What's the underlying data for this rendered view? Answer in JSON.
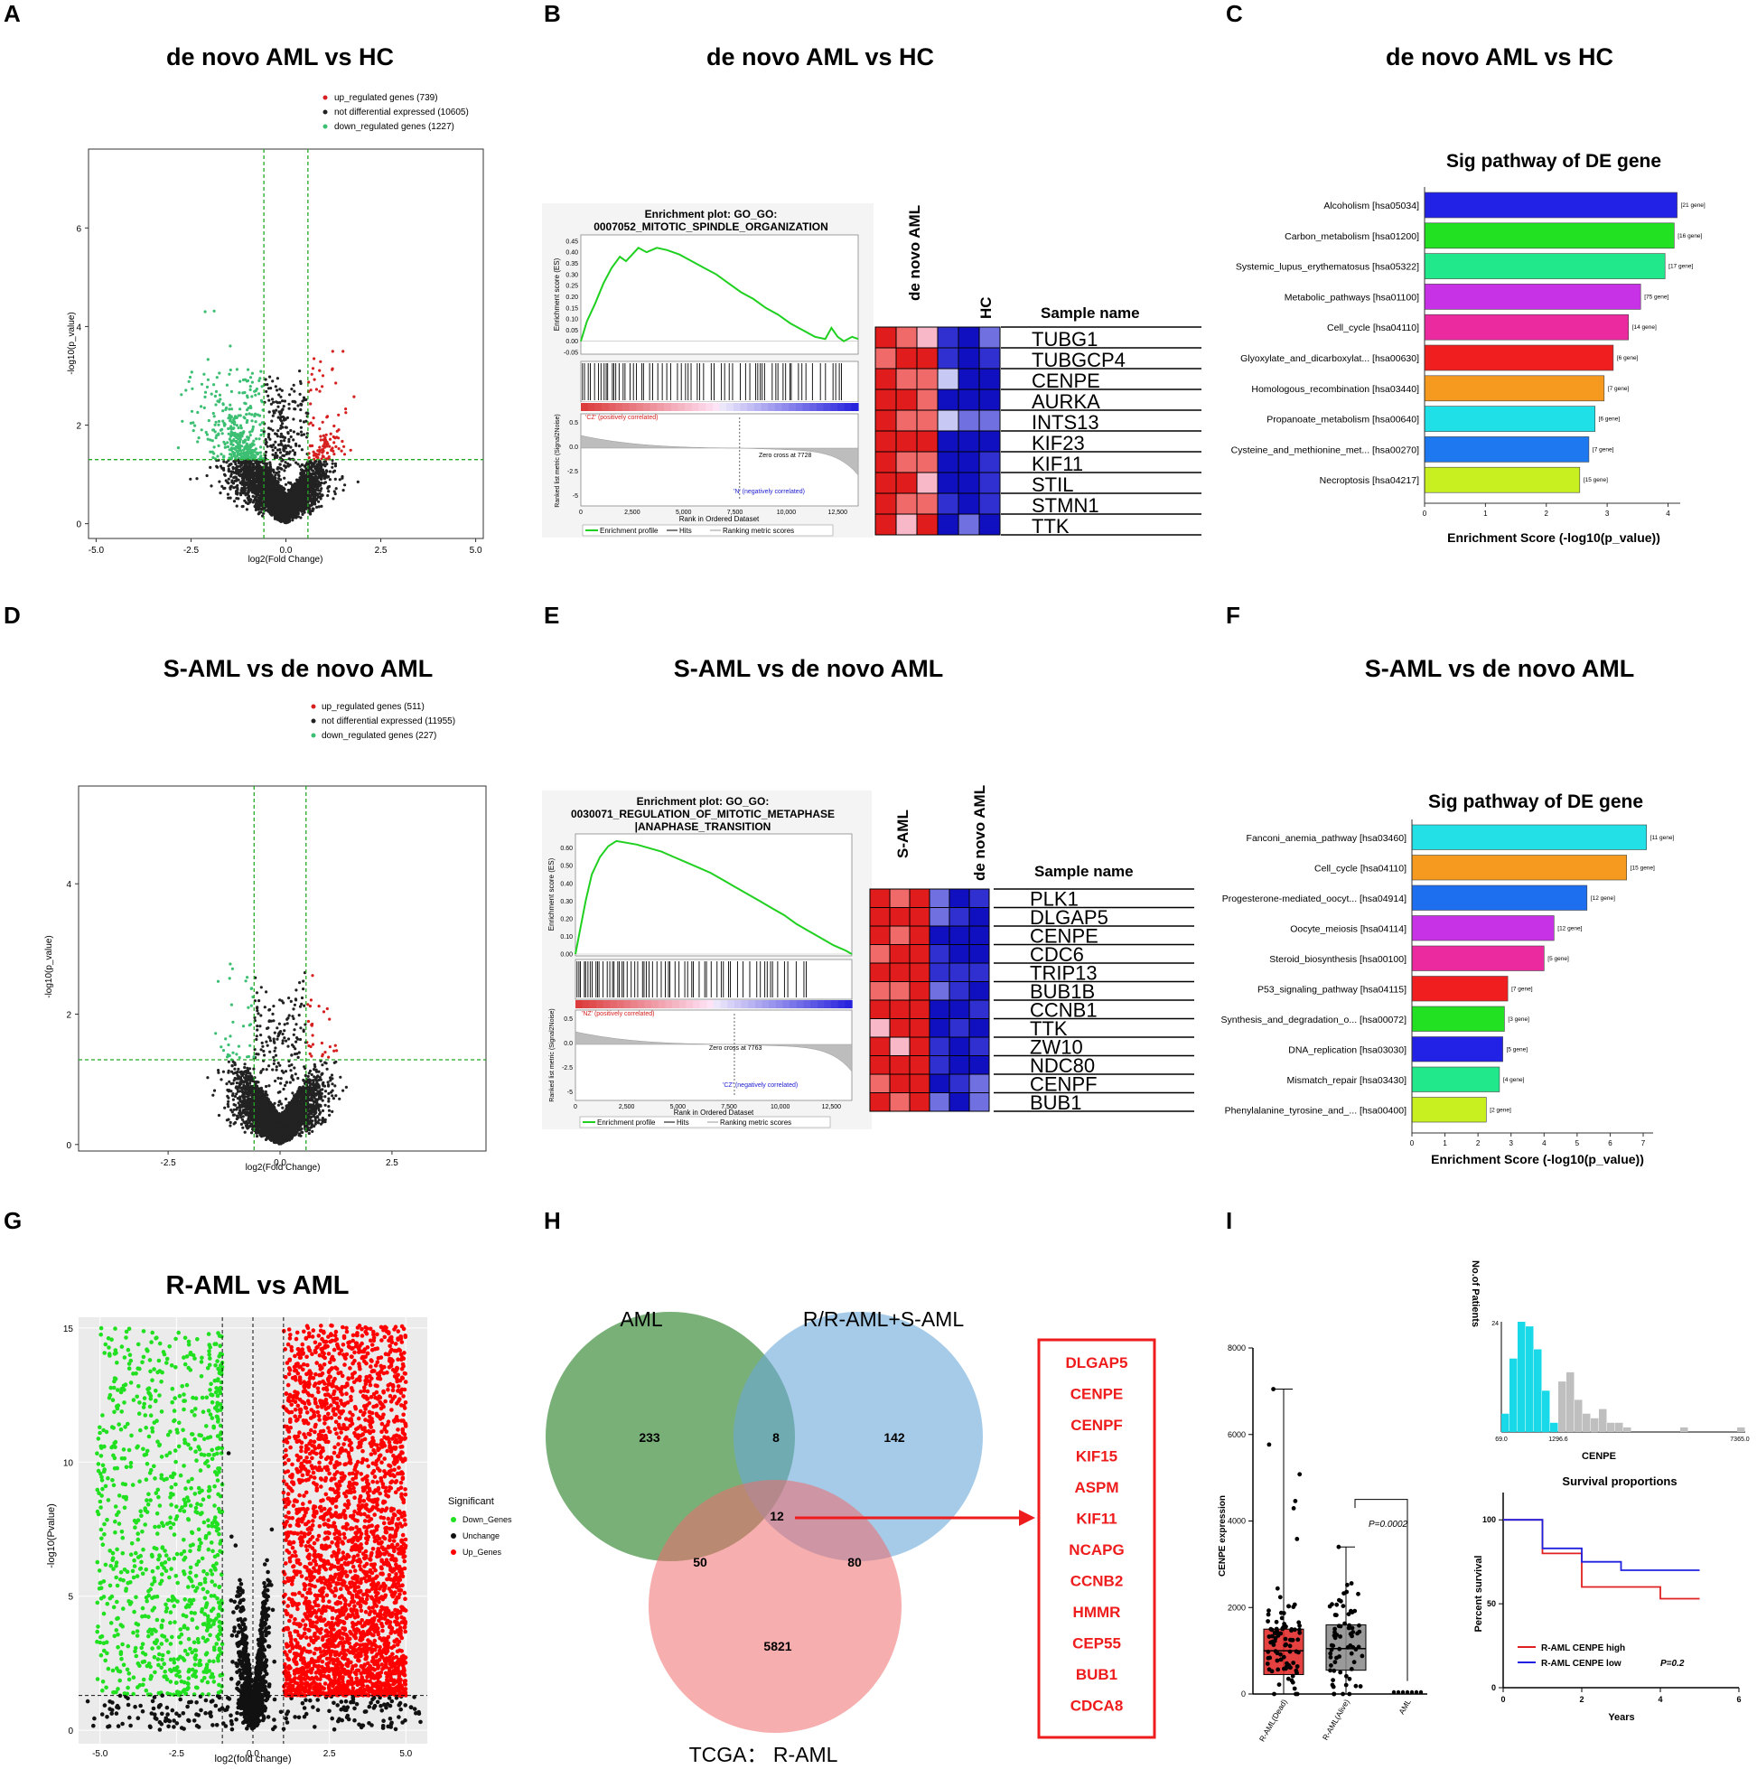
{
  "panel_letters": [
    "A",
    "B",
    "C",
    "D",
    "E",
    "F",
    "G",
    "H",
    "I"
  ],
  "colors": {
    "up": "#d62020",
    "down": "#3cbf72",
    "nd": "#222222",
    "gsea_line": "#20d020",
    "heat_red": "#e02020",
    "heat_blue": "#1010c0",
    "venn_green": "#3f8f3f",
    "venn_blue": "#6aa8d8",
    "venn_red": "#ef6b6b",
    "bright_green": "#20e020",
    "bright_red": "#ff0000",
    "cyan": "#19d8e8"
  },
  "panelA": {
    "title": "de novo AML vs HC",
    "legend": [
      "up_regulated genes (739)",
      "not differential expressed (10605)",
      "down_regulated genes (1227)"
    ],
    "xlabel": "log2(Fold Change)",
    "ylabel": "-log10(p_value)"
  },
  "panelB": {
    "title": "de novo AML vs HC",
    "enrichment_title_1": "Enrichment plot: GO_GO:",
    "enrichment_title_2": "0007052_MITOTIC_SPINDLE_ORGANIZATION",
    "es_label": "Enrichment score (ES)",
    "rank_label": "Ranked list metric (Signal2Noise)",
    "pos_corr": "'CZ' (positively correlated)",
    "neg_corr": "'N' (negatively correlated)",
    "zero_cross": "Zero cross at 7728",
    "xlabel": "Rank in Ordered Dataset",
    "legend": [
      "Enrichment profile",
      "Hits",
      "Ranking metric scores"
    ],
    "group1": "de novo AML",
    "group2": "HC",
    "sample_name": "Sample name",
    "genes": [
      "TUBG1",
      "TUBGCP4",
      "CENPE",
      "AURKA",
      "INTS13",
      "KIF23",
      "KIF11",
      "STIL",
      "STMN1",
      "TTK"
    ]
  },
  "panelC": {
    "title": "de novo AML vs HC",
    "subtitle": "Sig pathway of DE gene",
    "xlabel": "Enrichment Score (-log10(p_value))"
  },
  "panelD": {
    "title": "S-AML vs de novo AML",
    "legend": [
      "up_regulated genes (511)",
      "not differential expressed (11955)",
      "down_regulated genes (227)"
    ],
    "xlabel": "log2(Fold Change)",
    "ylabel": "-log10(p_value)"
  },
  "panelE": {
    "title": "S-AML vs de novo AML",
    "enrichment_title_1": "Enrichment plot: GO_GO:",
    "enrichment_title_2": "0030071_REGULATION_OF_MITOTIC_METAPHASE",
    "enrichment_title_3": "|ANAPHASE_TRANSITION",
    "es_label": "Enrichment score (ES)",
    "rank_label": "Ranked list metric (Signal2Noise)",
    "pos_corr": "'NZ' (positively correlated)",
    "neg_corr": "'CZ' (negatively correlated)",
    "zero_cross": "Zero cross at 7763",
    "xlabel": "Rank in Ordered Dataset",
    "legend": [
      "Enrichment profile",
      "Hits",
      "Ranking metric scores"
    ],
    "group1": "S-AML",
    "group2": "de novo AML",
    "sample_name": "Sample name",
    "genes": [
      "PLK1",
      "DLGAP5",
      "CENPE",
      "CDC6",
      "TRIP13",
      "BUB1B",
      "CCNB1",
      "TTK",
      "ZW10",
      "NDC80",
      "CENPF",
      "BUB1"
    ]
  },
  "panelF": {
    "title": "S-AML vs de novo AML",
    "subtitle": "Sig pathway of DE gene",
    "xlabel": "Enrichment Score (-log10(p_value))"
  },
  "panelG": {
    "title": "R-AML vs  AML",
    "xlabel": "log2(fold change)",
    "ylabel": "-log10(Pvalue)",
    "legend_title": "Significant",
    "legend": [
      "Down_Genes",
      "Unchange",
      "Up_Genes"
    ]
  },
  "panelH": {
    "labels": {
      "aml": "AML",
      "rr": "R/R-AML+S-AML",
      "tcga": "TCGA： R-AML"
    },
    "counts": {
      "aml_only": "233",
      "aml_rr": "8",
      "rr_only": "142",
      "all": "12",
      "aml_tcga": "50",
      "rr_tcga": "80",
      "tcga_only": "5821"
    },
    "genes": [
      "DLGAP5",
      "CENPE",
      "CENPF",
      "KIF15",
      "ASPM",
      "KIF11",
      "NCAPG",
      "CCNB2",
      "HMMR",
      "CEP55",
      "BUB1",
      "CDCA8"
    ]
  },
  "panelI": {
    "box_ylabel": "CENPE expression",
    "p_value": "P=0.0002",
    "hist_ylabel": "No.of Patients",
    "hist_xlabel": "CENPE",
    "hist_ticks": [
      "69.0",
      "1296.6",
      "7365.0"
    ],
    "hist_ytick": "24",
    "surv_title": "Survival proportions",
    "surv_ylabel": "Percent survival",
    "surv_xlabel": "Years",
    "surv_legend": [
      "R-AML CENPE high",
      "R-AML CENPE low"
    ],
    "surv_p": "P=0.2"
  },
  "chart_data": [
    {
      "id": "A",
      "type": "scatter",
      "title": "de novo AML vs HC",
      "xlabel": "log2(Fold Change)",
      "ylabel": "-log10(p_value)",
      "xlim": [
        -5.2,
        5.2
      ],
      "ylim": [
        -0.3,
        7.6
      ],
      "xticks": [
        -5.0,
        -2.5,
        0.0,
        2.5,
        5.0
      ],
      "yticks": [
        0,
        2,
        4,
        6
      ],
      "fc_threshold": 0.58,
      "p_threshold": 1.3,
      "series": [
        {
          "name": "up_regulated genes",
          "count": 739
        },
        {
          "name": "not differential expressed",
          "count": 10605
        },
        {
          "name": "down_regulated genes",
          "count": 1227
        }
      ]
    },
    {
      "id": "B",
      "type": "line",
      "title": "Enrichment plot: GO_GO:0007052_MITOTIC_SPINDLE_ORGANIZATION",
      "xlabel": "Rank in Ordered Dataset",
      "ylabel": "Enrichment score (ES)",
      "xlim": [
        0,
        13500
      ],
      "ylim": [
        -0.05,
        0.47
      ],
      "xticks": [
        0,
        2500,
        5000,
        7500,
        10000,
        12500
      ],
      "yticks": [
        -0.05,
        0.0,
        0.05,
        0.1,
        0.15,
        0.2,
        0.25,
        0.3,
        0.35,
        0.4,
        0.45
      ],
      "x": [
        0,
        300,
        700,
        1100,
        1500,
        1900,
        2200,
        2500,
        2800,
        3200,
        3700,
        4200,
        4800,
        5400,
        6000,
        6600,
        7200,
        7800,
        8400,
        9000,
        9600,
        10200,
        10800,
        11400,
        11900,
        12200,
        12500,
        12800,
        13200,
        13500
      ],
      "values": [
        0.0,
        0.09,
        0.17,
        0.26,
        0.33,
        0.38,
        0.36,
        0.39,
        0.42,
        0.4,
        0.42,
        0.41,
        0.39,
        0.36,
        0.33,
        0.3,
        0.26,
        0.22,
        0.19,
        0.15,
        0.12,
        0.08,
        0.05,
        0.02,
        0.01,
        0.06,
        0.02,
        0.0,
        0.02,
        0.01
      ],
      "zero_cross": 7728
    },
    {
      "id": "C",
      "type": "bar",
      "title": "Sig pathway of DE gene",
      "xlabel": "Enrichment Score (-log10(p_value))",
      "xlim": [
        0,
        4.2
      ],
      "xticks": [
        0,
        1,
        2,
        3,
        4
      ],
      "categories": [
        "Alcoholism [hsa05034]",
        "Carbon_metabolism [hsa01200]",
        "Systemic_lupus_erythematosus [hsa05322]",
        "Metabolic_pathways [hsa01100]",
        "Cell_cycle [hsa04110]",
        "Glyoxylate_and_dicarboxylat... [hsa00630]",
        "Homologous_recombination [hsa03440]",
        "Propanoate_metabolism [hsa00640]",
        "Cysteine_and_methionine_met... [hsa00270]",
        "Necroptosis [hsa04217]"
      ],
      "values": [
        4.15,
        4.1,
        3.95,
        3.55,
        3.35,
        3.1,
        2.95,
        2.8,
        2.7,
        2.55
      ],
      "bar_labels": [
        "[21 gene]",
        "[16 gene]",
        "[17 gene]",
        "[75 gene]",
        "[14 gene]",
        "[6 gene]",
        "[7 gene]",
        "[6 gene]",
        "[7 gene]",
        "[15 gene]"
      ],
      "bar_colors": [
        "#2222e6",
        "#22e022",
        "#22e88c",
        "#c832e6",
        "#ea2a9e",
        "#f01e1e",
        "#f59a1e",
        "#1ee0e6",
        "#1e78f0",
        "#c8f020"
      ]
    },
    {
      "id": "D",
      "type": "scatter",
      "title": "S-AML vs de novo AML",
      "xlabel": "log2(Fold Change)",
      "ylabel": "-log10(p_value)",
      "xlim": [
        -4.5,
        4.6
      ],
      "ylim": [
        -0.1,
        5.5
      ],
      "xticks": [
        -2.5,
        0.0,
        2.5
      ],
      "yticks": [
        0,
        2,
        4
      ],
      "fc_threshold": 0.58,
      "p_threshold": 1.3,
      "series": [
        {
          "name": "up_regulated genes",
          "count": 511
        },
        {
          "name": "not differential expressed",
          "count": 11955
        },
        {
          "name": "down_regulated genes",
          "count": 227
        }
      ]
    },
    {
      "id": "E",
      "type": "line",
      "title": "Enrichment plot: GO_GO:0030071_REGULATION_OF_MITOTIC_METAPHASE|ANAPHASE_TRANSITION",
      "xlabel": "Rank in Ordered Dataset",
      "ylabel": "Enrichment score (ES)",
      "xlim": [
        0,
        13500
      ],
      "ylim": [
        0.0,
        0.67
      ],
      "xticks": [
        0,
        2500,
        5000,
        7500,
        10000,
        12500
      ],
      "yticks": [
        0.0,
        0.1,
        0.2,
        0.3,
        0.4,
        0.5,
        0.6
      ],
      "x": [
        0,
        200,
        500,
        800,
        1200,
        1600,
        2000,
        2500,
        3000,
        3600,
        4200,
        4800,
        5400,
        6000,
        6600,
        7200,
        7800,
        8400,
        9000,
        9600,
        10200,
        10800,
        11400,
        12000,
        12600,
        13200,
        13500
      ],
      "values": [
        0.0,
        0.12,
        0.3,
        0.45,
        0.55,
        0.61,
        0.64,
        0.63,
        0.62,
        0.6,
        0.58,
        0.55,
        0.52,
        0.49,
        0.46,
        0.42,
        0.38,
        0.34,
        0.3,
        0.26,
        0.22,
        0.17,
        0.13,
        0.09,
        0.05,
        0.02,
        0.0
      ],
      "zero_cross": 7763
    },
    {
      "id": "F",
      "type": "bar",
      "title": "Sig pathway of DE gene",
      "xlabel": "Enrichment Score (-log10(p_value))",
      "xlim": [
        0,
        7.3
      ],
      "xticks": [
        0,
        1,
        2,
        3,
        4,
        5,
        6,
        7
      ],
      "categories": [
        "Fanconi_anemia_pathway [hsa03460]",
        "Cell_cycle [hsa04110]",
        "Progesterone-mediated_oocyt... [hsa04914]",
        "Oocyte_meiosis [hsa04114]",
        "Steroid_biosynthesis [hsa00100]",
        "P53_signaling_pathway [hsa04115]",
        "Synthesis_and_degradation_o... [hsa00072]",
        "DNA_replication [hsa03030]",
        "Mismatch_repair [hsa03430]",
        "Phenylalanine_tyrosine_and_... [hsa00400]"
      ],
      "values": [
        7.1,
        6.5,
        5.3,
        4.3,
        4.0,
        2.9,
        2.8,
        2.75,
        2.65,
        2.25
      ],
      "bar_labels": [
        "[11 gene]",
        "[15 gene]",
        "[12 gene]",
        "[12 gene]",
        "[5 gene]",
        "[7 gene]",
        "[3 gene]",
        "[5 gene]",
        "[4 gene]",
        "[2 gene]"
      ],
      "bar_colors": [
        "#22e0e6",
        "#f59a1e",
        "#1e6ef0",
        "#c832e6",
        "#ea2a9e",
        "#f01e1e",
        "#22e022",
        "#2222e6",
        "#22e88c",
        "#c8f020"
      ]
    },
    {
      "id": "G",
      "type": "scatter",
      "title": "R-AML vs  AML",
      "xlabel": "log2(fold change)",
      "ylabel": "-log10(Pvalue)",
      "xlim": [
        -5.7,
        5.7
      ],
      "ylim": [
        -0.5,
        15.4
      ],
      "xticks": [
        -5.0,
        -2.5,
        0.0,
        2.5,
        5.0
      ],
      "yticks": [
        0,
        5,
        10,
        15
      ],
      "fc_threshold": 1.0,
      "p_threshold": 1.3,
      "series": [
        {
          "name": "Down_Genes"
        },
        {
          "name": "Unchange"
        },
        {
          "name": "Up_Genes"
        }
      ]
    },
    {
      "id": "H",
      "type": "venn",
      "sets": [
        "AML",
        "R/R-AML+S-AML",
        "TCGA： R-AML"
      ],
      "regions": {
        "AML": 233,
        "AML&R/R-AML+S-AML": 8,
        "R/R-AML+S-AML": 142,
        "all": 12,
        "AML&TCGA": 50,
        "R/R-AML+S-AML&TCGA": 80,
        "TCGA": 5821
      }
    },
    {
      "id": "I-box",
      "type": "box",
      "ylabel": "CENPE expression",
      "categories": [
        "R-AML(Dead)",
        "R-AML(Alive)",
        "AML"
      ],
      "ylim": [
        0,
        8000
      ],
      "yticks": [
        0,
        2000,
        4000,
        6000,
        8000
      ],
      "stats": [
        {
          "min": 0,
          "q1": 450,
          "median": 1000,
          "q3": 1500,
          "max": 7050
        },
        {
          "min": 0,
          "q1": 550,
          "median": 1050,
          "q3": 1600,
          "max": 3400
        },
        {
          "min": 0,
          "q1": 0,
          "median": 0,
          "q3": 0,
          "max": 0
        }
      ],
      "p_value": "P=0.0002"
    },
    {
      "id": "I-hist",
      "type": "bar",
      "xlabel": "CENPE",
      "ylabel": "No.of Patients",
      "values": [
        4,
        16,
        24,
        23,
        18,
        9,
        2,
        11,
        13,
        7,
        4,
        3,
        5,
        2,
        2,
        1,
        0,
        0,
        0,
        0,
        0,
        0,
        1,
        0,
        0,
        0,
        0,
        0,
        0,
        1
      ],
      "cutoff_index": 6,
      "colors": [
        "#19d8e8",
        "#bfbfbf"
      ]
    },
    {
      "id": "I-surv",
      "type": "line",
      "title": "Survival proportions",
      "xlabel": "Years",
      "ylabel": "Percent survival",
      "xlim": [
        0,
        6
      ],
      "ylim": [
        0,
        100
      ],
      "xticks": [
        0,
        2,
        4,
        6
      ],
      "yticks": [
        0,
        50,
        100
      ],
      "series": [
        {
          "name": "R-AML CENPE high",
          "x": [
            0,
            1,
            1,
            2,
            2,
            4,
            4,
            5
          ],
          "values": [
            100,
            100,
            80,
            80,
            60,
            60,
            53,
            53
          ]
        },
        {
          "name": "R-AML CENPE low",
          "x": [
            0,
            1,
            1,
            2,
            2,
            3,
            3,
            5
          ],
          "values": [
            100,
            100,
            83,
            83,
            75,
            75,
            70,
            70
          ]
        }
      ],
      "p_value": "P=0.2"
    }
  ]
}
